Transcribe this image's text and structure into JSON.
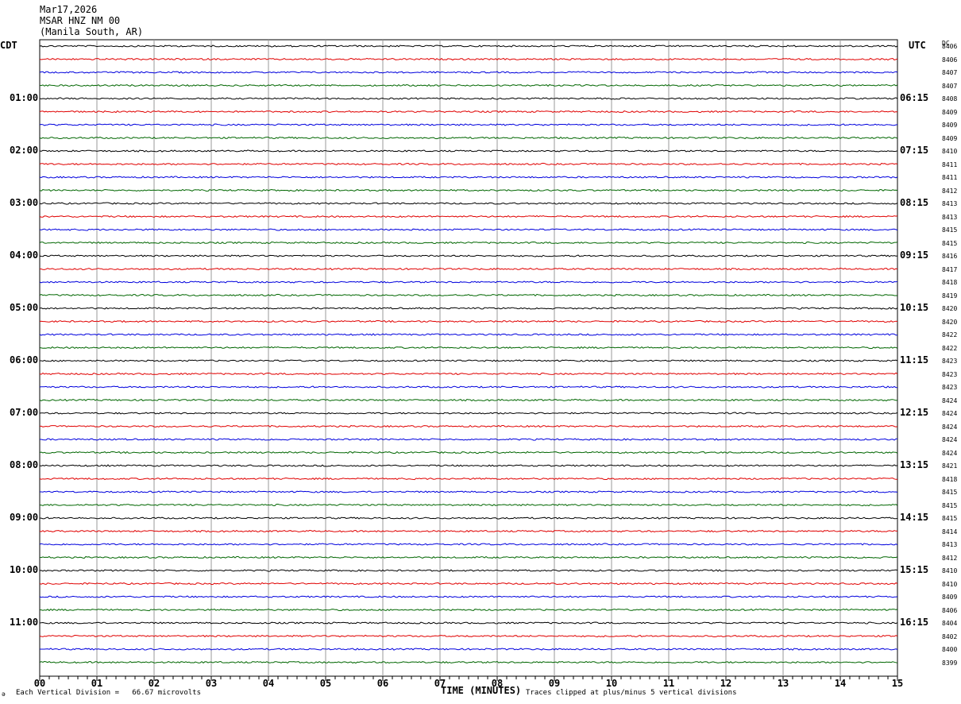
{
  "header": {
    "date": "Mar17,2026",
    "station": "MSAR HNZ NM 00",
    "location": "(Manila South, AR)"
  },
  "axes": {
    "left_tz": "CDT",
    "right_tz": "UTC",
    "dc_label": "DC",
    "xlabel": "TIME (MINUTES)"
  },
  "footer": {
    "scale_note": "Each Vertical Division =   66.67 microvolts",
    "clip_note": "Traces clipped at plus/minus 5 vertical divisions",
    "corner_mark": "ə"
  },
  "chart_data": {
    "type": "line",
    "xlim": [
      0,
      15
    ],
    "x_ticks": [
      "00",
      "01",
      "02",
      "03",
      "04",
      "05",
      "06",
      "07",
      "08",
      "09",
      "10",
      "11",
      "12",
      "13",
      "14",
      "15"
    ],
    "trace_colors": [
      "#000000",
      "#e00000",
      "#0000dd",
      "#006600"
    ],
    "left_hour_labels": [
      "01:00",
      "02:00",
      "03:00",
      "04:00",
      "05:00",
      "06:00",
      "07:00",
      "08:00",
      "09:00",
      "10:00",
      "11:00"
    ],
    "right_hour_labels": [
      "06:15",
      "07:15",
      "08:15",
      "09:15",
      "10:15",
      "11:15",
      "12:15",
      "13:15",
      "14:15",
      "15:15",
      "16:15"
    ],
    "dc_offsets": [
      "8406",
      "8406",
      "8407",
      "8407",
      "8408",
      "8409",
      "8409",
      "8409",
      "8410",
      "8411",
      "8411",
      "8412",
      "8413",
      "8413",
      "8415",
      "8415",
      "8416",
      "8417",
      "8418",
      "8419",
      "8420",
      "8420",
      "8422",
      "8422",
      "8423",
      "8423",
      "8423",
      "8424",
      "8424",
      "8424",
      "8424",
      "8424",
      "8421",
      "8418",
      "8415",
      "8415",
      "8415",
      "8414",
      "8413",
      "8412",
      "8410",
      "8410",
      "8409",
      "8406",
      "8404",
      "8402",
      "8400",
      "8399"
    ],
    "trace_count": 48,
    "trace_span_minutes": 15
  }
}
